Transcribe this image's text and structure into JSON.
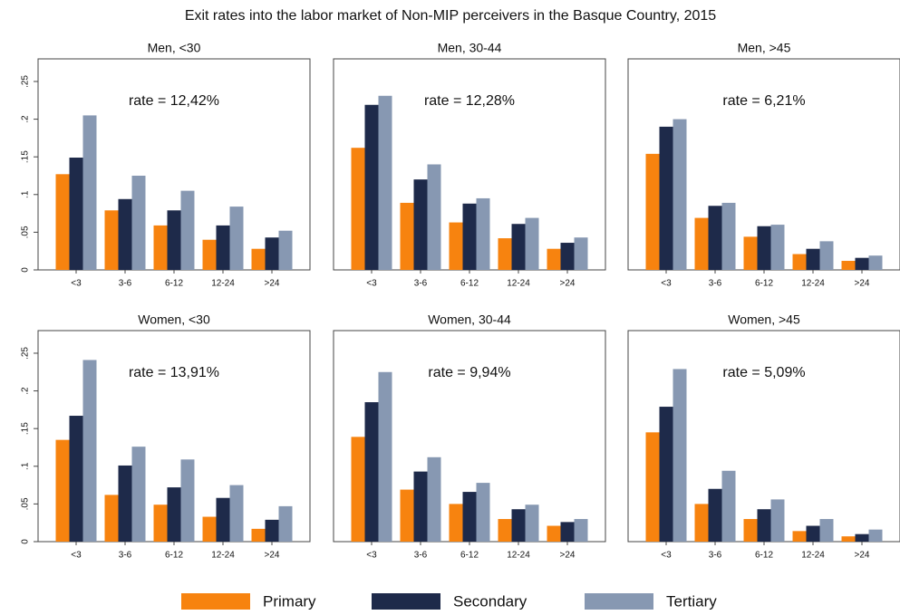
{
  "title": "Exit rates into the labor market of Non-MIP perceivers in the Basque Country, 2015",
  "legend": [
    {
      "name": "Primary",
      "color": "#f7830f"
    },
    {
      "name": "Secondary",
      "color": "#1e2a4a"
    },
    {
      "name": "Tertiary",
      "color": "#8798b2"
    }
  ],
  "chart_data": [
    {
      "type": "bar",
      "title": "Men, <30",
      "annotation": "rate = 12,42%",
      "categories": [
        "<3",
        "3-6",
        "6-12",
        "12-24",
        ">24"
      ],
      "series": [
        {
          "values": [
            0.127,
            0.079,
            0.059,
            0.04,
            0.028
          ]
        },
        {
          "values": [
            0.149,
            0.094,
            0.079,
            0.059,
            0.043
          ]
        },
        {
          "values": [
            0.205,
            0.125,
            0.105,
            0.084,
            0.052
          ]
        }
      ],
      "ylim": [
        0,
        0.28
      ],
      "yticks": [
        {
          "value": 0,
          "label": "0"
        },
        {
          "value": 0.05,
          "label": ".05"
        },
        {
          "value": 0.1,
          "label": ".1"
        },
        {
          "value": 0.15,
          "label": ".15"
        },
        {
          "value": 0.2,
          "label": ".2"
        },
        {
          "value": 0.25,
          "label": ".25"
        }
      ]
    },
    {
      "type": "bar",
      "title": "Men, 30-44",
      "annotation": "rate = 12,28%",
      "categories": [
        "<3",
        "3-6",
        "6-12",
        "12-24",
        ">24"
      ],
      "series": [
        {
          "values": [
            0.162,
            0.089,
            0.063,
            0.042,
            0.028
          ]
        },
        {
          "values": [
            0.219,
            0.12,
            0.088,
            0.061,
            0.036
          ]
        },
        {
          "values": [
            0.231,
            0.14,
            0.095,
            0.069,
            0.043
          ]
        }
      ],
      "ylim": [
        0,
        0.28
      ],
      "yticks": []
    },
    {
      "type": "bar",
      "title": "Men, >45",
      "annotation": "rate = 6,21%",
      "categories": [
        "<3",
        "3-6",
        "6-12",
        "12-24",
        ">24"
      ],
      "series": [
        {
          "values": [
            0.154,
            0.069,
            0.044,
            0.021,
            0.012
          ]
        },
        {
          "values": [
            0.19,
            0.085,
            0.058,
            0.028,
            0.016
          ]
        },
        {
          "values": [
            0.2,
            0.089,
            0.06,
            0.038,
            0.019
          ]
        }
      ],
      "ylim": [
        0,
        0.28
      ],
      "yticks": []
    },
    {
      "type": "bar",
      "title": "Women, <30",
      "annotation": "rate = 13,91%",
      "categories": [
        "<3",
        "3-6",
        "6-12",
        "12-24",
        ">24"
      ],
      "series": [
        {
          "values": [
            0.135,
            0.062,
            0.049,
            0.033,
            0.017
          ]
        },
        {
          "values": [
            0.167,
            0.101,
            0.072,
            0.058,
            0.029
          ]
        },
        {
          "values": [
            0.241,
            0.126,
            0.109,
            0.075,
            0.047
          ]
        }
      ],
      "ylim": [
        0,
        0.28
      ],
      "yticks": [
        {
          "value": 0,
          "label": "0"
        },
        {
          "value": 0.05,
          "label": ".05"
        },
        {
          "value": 0.1,
          "label": ".1"
        },
        {
          "value": 0.15,
          "label": ".15"
        },
        {
          "value": 0.2,
          "label": ".2"
        },
        {
          "value": 0.25,
          "label": ".25"
        }
      ]
    },
    {
      "type": "bar",
      "title": "Women, 30-44",
      "annotation": "rate = 9,94%",
      "categories": [
        "<3",
        "3-6",
        "6-12",
        "12-24",
        ">24"
      ],
      "series": [
        {
          "values": [
            0.139,
            0.069,
            0.05,
            0.03,
            0.021
          ]
        },
        {
          "values": [
            0.185,
            0.093,
            0.066,
            0.043,
            0.026
          ]
        },
        {
          "values": [
            0.225,
            0.112,
            0.078,
            0.049,
            0.03
          ]
        }
      ],
      "ylim": [
        0,
        0.28
      ],
      "yticks": []
    },
    {
      "type": "bar",
      "title": "Women, >45",
      "annotation": "rate = 5,09%",
      "categories": [
        "<3",
        "3-6",
        "6-12",
        "12-24",
        ">24"
      ],
      "series": [
        {
          "values": [
            0.145,
            0.05,
            0.03,
            0.014,
            0.007
          ]
        },
        {
          "values": [
            0.179,
            0.07,
            0.043,
            0.021,
            0.01
          ]
        },
        {
          "values": [
            0.229,
            0.094,
            0.056,
            0.03,
            0.016
          ]
        }
      ],
      "ylim": [
        0,
        0.28
      ],
      "yticks": []
    }
  ]
}
